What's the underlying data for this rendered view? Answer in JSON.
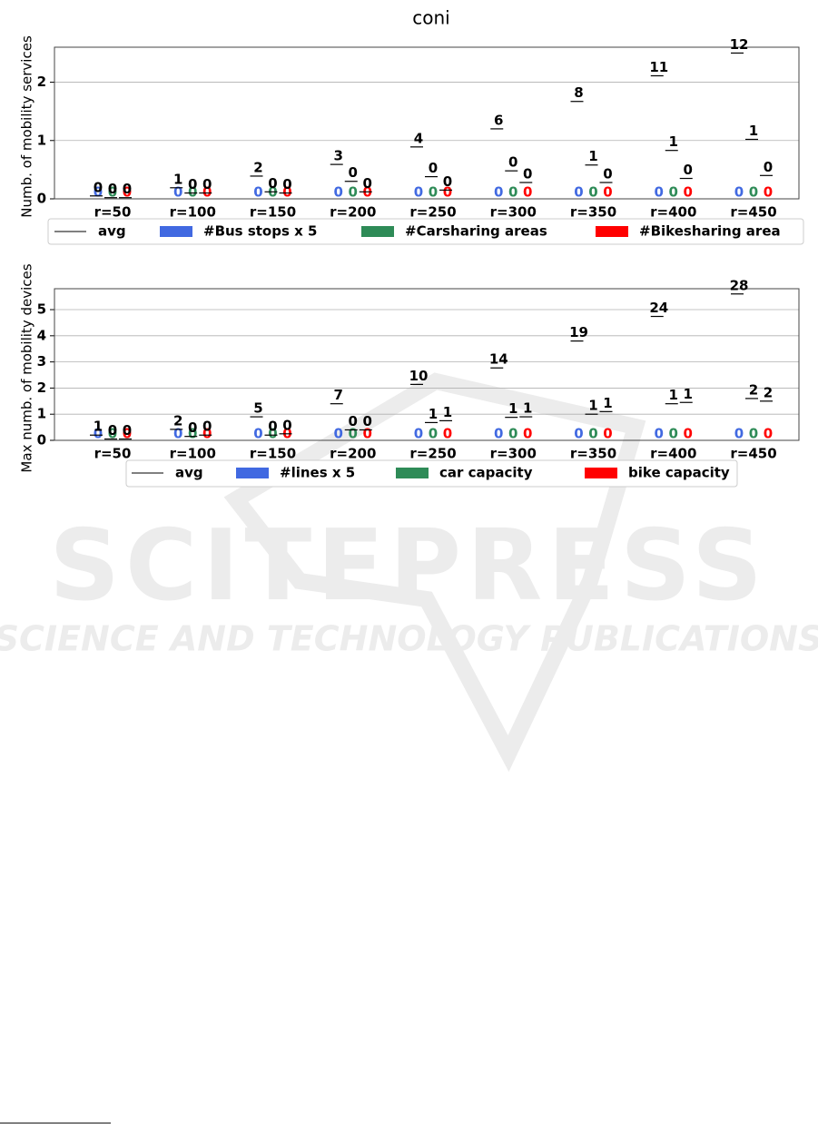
{
  "title": "coni",
  "watermark": {
    "line1": "SCITEPRESS",
    "line2": "SCIENCE AND TECHNOLOGY PUBLICATIONS"
  },
  "chart_data": [
    {
      "type": "bar",
      "ylabel": "Numb. of mobility services",
      "categories": [
        "r=50",
        "r=100",
        "r=150",
        "r=200",
        "r=250",
        "r=300",
        "r=350",
        "r=400",
        "r=450"
      ],
      "ylim": [
        0,
        2.6
      ],
      "yticks": [
        0,
        1,
        2
      ],
      "grid": true,
      "avg_name": "avg",
      "series": [
        {
          "name": "#Bus stops x 5",
          "color": "#4169e1",
          "values": [
            0,
            0,
            0,
            0,
            0,
            0,
            0,
            0,
            0
          ],
          "avg": [
            0.05,
            0.19,
            0.39,
            0.59,
            0.89,
            1.2,
            1.67,
            2.11,
            2.5
          ],
          "avg_counts": [
            0,
            1,
            2,
            3,
            4,
            6,
            8,
            11,
            12
          ]
        },
        {
          "name": "#Carsharing areas",
          "color": "#2e8b57",
          "values": [
            0,
            0,
            0,
            0,
            0,
            0,
            0,
            0,
            0
          ],
          "avg": [
            0.02,
            0.1,
            0.12,
            0.3,
            0.38,
            0.48,
            0.58,
            0.83,
            1.02
          ],
          "avg_counts": [
            0,
            0,
            0,
            0,
            0,
            0,
            1,
            1,
            1
          ]
        },
        {
          "name": "#Bikesharing area",
          "color": "#ff0000",
          "values": [
            0,
            0,
            0,
            0,
            0,
            0,
            0,
            0,
            0
          ],
          "avg": [
            0.02,
            0.1,
            0.1,
            0.12,
            0.15,
            0.28,
            0.28,
            0.35,
            0.4
          ],
          "avg_counts": [
            0,
            0,
            0,
            0,
            0,
            0,
            0,
            0,
            0
          ]
        }
      ]
    },
    {
      "type": "bar",
      "ylabel": "Max numb. of mobility devices",
      "categories": [
        "r=50",
        "r=100",
        "r=150",
        "r=200",
        "r=250",
        "r=300",
        "r=350",
        "r=400",
        "r=450"
      ],
      "ylim": [
        0,
        5.8
      ],
      "yticks": [
        0,
        1,
        2,
        3,
        4,
        5
      ],
      "grid": true,
      "avg_name": "avg",
      "series": [
        {
          "name": "#lines x 5",
          "color": "#4169e1",
          "values": [
            0,
            0,
            0,
            0,
            0,
            0,
            0,
            0,
            0
          ],
          "avg": [
            0.2,
            0.42,
            0.9,
            1.4,
            2.14,
            2.77,
            3.8,
            4.74,
            5.6
          ],
          "avg_counts": [
            1,
            2,
            5,
            7,
            10,
            14,
            19,
            24,
            28
          ]
        },
        {
          "name": "car capacity",
          "color": "#2e8b57",
          "values": [
            0,
            0,
            0,
            0,
            0,
            0,
            0,
            0,
            0
          ],
          "avg": [
            0.05,
            0.15,
            0.2,
            0.4,
            0.68,
            0.88,
            1.0,
            1.4,
            1.6
          ],
          "avg_counts": [
            0,
            0,
            0,
            0,
            1,
            1,
            1,
            1,
            2
          ]
        },
        {
          "name": "bike capacity",
          "color": "#ff0000",
          "values": [
            0,
            0,
            0,
            0,
            0,
            0,
            0,
            0,
            0
          ],
          "avg": [
            0.05,
            0.2,
            0.25,
            0.4,
            0.75,
            0.9,
            1.1,
            1.45,
            1.5
          ],
          "avg_counts": [
            0,
            0,
            0,
            0,
            1,
            1,
            1,
            1,
            2
          ]
        }
      ]
    }
  ]
}
